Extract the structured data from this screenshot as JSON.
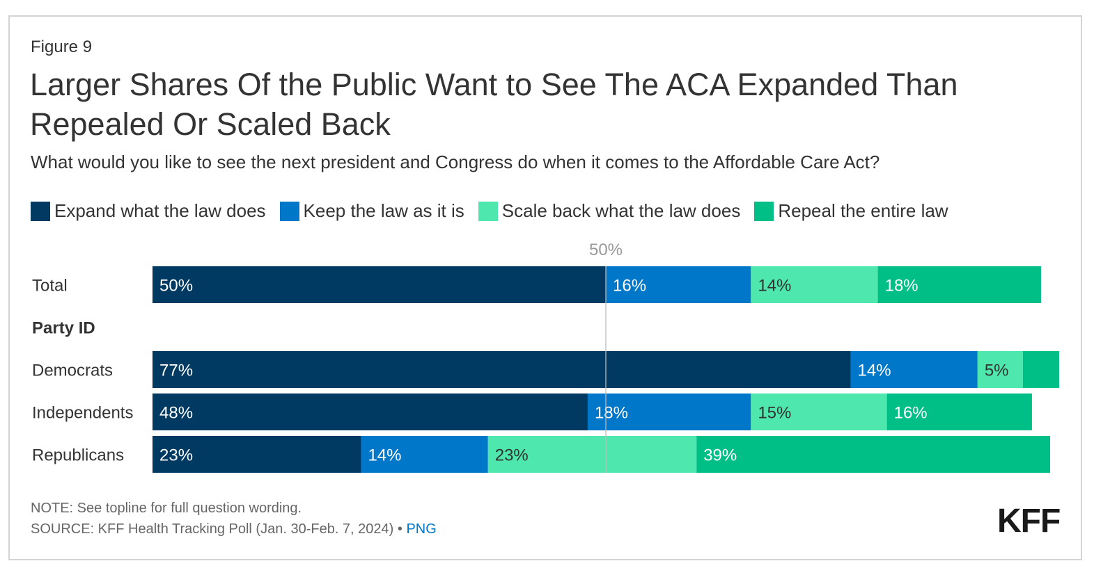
{
  "figure_label": "Figure 9",
  "title": "Larger Shares Of the Public Want to See The ACA Expanded Than Repealed Or Scaled Back",
  "subtitle": "What would you like to see the next president and Congress do when it comes to the Affordable Care Act?",
  "note": "NOTE: See topline for full question wording.",
  "source": "SOURCE: KFF Health Tracking Poll (Jan. 30-Feb. 7, 2024)",
  "source_separator": " • ",
  "source_link": "PNG",
  "logo": "KFF",
  "chart_data": {
    "type": "bar",
    "orientation": "horizontal",
    "stacked": true,
    "reference_line": {
      "value": 50,
      "label": "50%"
    },
    "legend_position": "top",
    "series": [
      {
        "name": "Expand what the law does",
        "color": "#003a63"
      },
      {
        "name": "Keep the law as it is",
        "color": "#0077c8"
      },
      {
        "name": "Scale back what the law does",
        "color": "#4ee7ae"
      },
      {
        "name": "Repeal the entire law",
        "color": "#00bf86"
      }
    ],
    "rows": [
      {
        "label": "Total",
        "values": [
          50,
          16,
          14,
          18
        ],
        "labels": [
          "50%",
          "16%",
          "14%",
          "18%"
        ]
      },
      {
        "label": "Party ID",
        "header": true
      },
      {
        "label": "Democrats",
        "values": [
          77,
          14,
          5,
          4
        ],
        "labels": [
          "77%",
          "14%",
          "5%",
          ""
        ]
      },
      {
        "label": "Independents",
        "values": [
          48,
          18,
          15,
          16
        ],
        "labels": [
          "48%",
          "18%",
          "15%",
          "16%"
        ]
      },
      {
        "label": "Republicans",
        "values": [
          23,
          14,
          23,
          39
        ],
        "labels": [
          "23%",
          "14%",
          "23%",
          "39%"
        ]
      }
    ]
  }
}
